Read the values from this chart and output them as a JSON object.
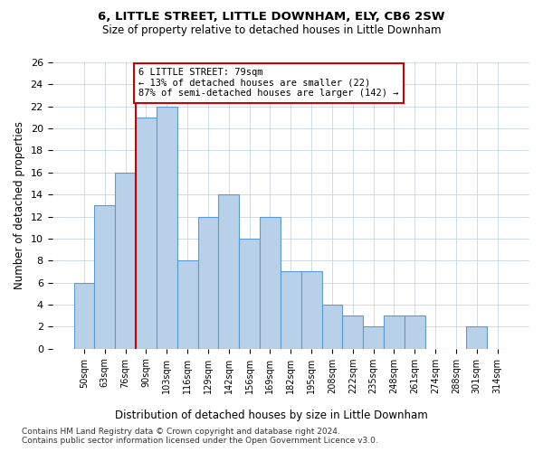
{
  "title": "6, LITTLE STREET, LITTLE DOWNHAM, ELY, CB6 2SW",
  "subtitle": "Size of property relative to detached houses in Little Downham",
  "xlabel": "Distribution of detached houses by size in Little Downham",
  "ylabel": "Number of detached properties",
  "bar_labels": [
    "50sqm",
    "63sqm",
    "76sqm",
    "90sqm",
    "103sqm",
    "116sqm",
    "129sqm",
    "142sqm",
    "156sqm",
    "169sqm",
    "182sqm",
    "195sqm",
    "208sqm",
    "222sqm",
    "235sqm",
    "248sqm",
    "261sqm",
    "274sqm",
    "288sqm",
    "301sqm",
    "314sqm"
  ],
  "bar_values": [
    6,
    13,
    16,
    21,
    22,
    8,
    12,
    14,
    10,
    12,
    7,
    7,
    4,
    3,
    2,
    3,
    3,
    0,
    0,
    2,
    0
  ],
  "bar_color": "#b8d0e8",
  "bar_edgecolor": "#5b9bd5",
  "background_color": "#ffffff",
  "grid_color": "#c8d4e0",
  "redline_x": 2.5,
  "annotation_text": "6 LITTLE STREET: 79sqm\n← 13% of detached houses are smaller (22)\n87% of semi-detached houses are larger (142) →",
  "annotation_box_color": "#ffffff",
  "annotation_box_edgecolor": "#cc0000",
  "footnote1": "Contains HM Land Registry data © Crown copyright and database right 2024.",
  "footnote2": "Contains public sector information licensed under the Open Government Licence v3.0.",
  "ylim": [
    0,
    26
  ],
  "yticks": [
    0,
    2,
    4,
    6,
    8,
    10,
    12,
    14,
    16,
    18,
    20,
    22,
    24,
    26
  ]
}
